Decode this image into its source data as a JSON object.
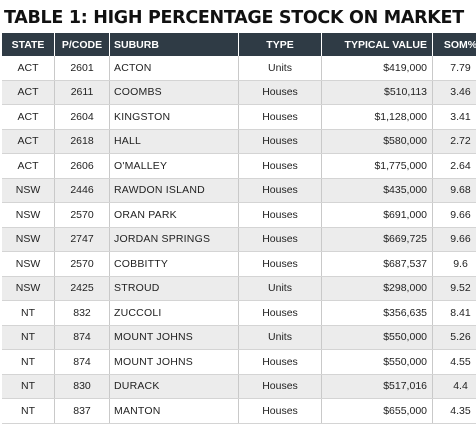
{
  "title": "TABLE 1: HIGH PERCENTAGE STOCK ON MARKET",
  "columns": {
    "state": "STATE",
    "postcode": "P/CODE",
    "suburb": "SUBURB",
    "type": "TYPE",
    "value": "TYPICAL VALUE",
    "som": "SOM%"
  },
  "rows": [
    {
      "state": "ACT",
      "postcode": "2601",
      "suburb": "ACTON",
      "type": "Units",
      "value": "$419,000",
      "som": "7.79"
    },
    {
      "state": "ACT",
      "postcode": "2611",
      "suburb": "COOMBS",
      "type": "Houses",
      "value": "$510,113",
      "som": "3.46"
    },
    {
      "state": "ACT",
      "postcode": "2604",
      "suburb": "KINGSTON",
      "type": "Houses",
      "value": "$1,128,000",
      "som": "3.41"
    },
    {
      "state": "ACT",
      "postcode": "2618",
      "suburb": "HALL",
      "type": "Houses",
      "value": "$580,000",
      "som": "2.72"
    },
    {
      "state": "ACT",
      "postcode": "2606",
      "suburb": "O'MALLEY",
      "type": "Houses",
      "value": "$1,775,000",
      "som": "2.64"
    },
    {
      "state": "NSW",
      "postcode": "2446",
      "suburb": "RAWDON ISLAND",
      "type": "Houses",
      "value": "$435,000",
      "som": "9.68"
    },
    {
      "state": "NSW",
      "postcode": "2570",
      "suburb": "ORAN PARK",
      "type": "Houses",
      "value": "$691,000",
      "som": "9.66"
    },
    {
      "state": "NSW",
      "postcode": "2747",
      "suburb": "JORDAN SPRINGS",
      "type": "Houses",
      "value": "$669,725",
      "som": "9.66"
    },
    {
      "state": "NSW",
      "postcode": "2570",
      "suburb": "COBBITTY",
      "type": "Houses",
      "value": "$687,537",
      "som": "9.6"
    },
    {
      "state": "NSW",
      "postcode": "2425",
      "suburb": "STROUD",
      "type": "Units",
      "value": "$298,000",
      "som": "9.52"
    },
    {
      "state": "NT",
      "postcode": "832",
      "suburb": "ZUCCOLI",
      "type": "Houses",
      "value": "$356,635",
      "som": "8.41"
    },
    {
      "state": "NT",
      "postcode": "874",
      "suburb": "MOUNT JOHNS",
      "type": "Units",
      "value": "$550,000",
      "som": "5.26"
    },
    {
      "state": "NT",
      "postcode": "874",
      "suburb": "MOUNT JOHNS",
      "type": "Houses",
      "value": "$550,000",
      "som": "4.55"
    },
    {
      "state": "NT",
      "postcode": "830",
      "suburb": "DURACK",
      "type": "Houses",
      "value": "$517,016",
      "som": "4.4"
    },
    {
      "state": "NT",
      "postcode": "837",
      "suburb": "MANTON",
      "type": "Houses",
      "value": "$655,000",
      "som": "4.35"
    }
  ]
}
